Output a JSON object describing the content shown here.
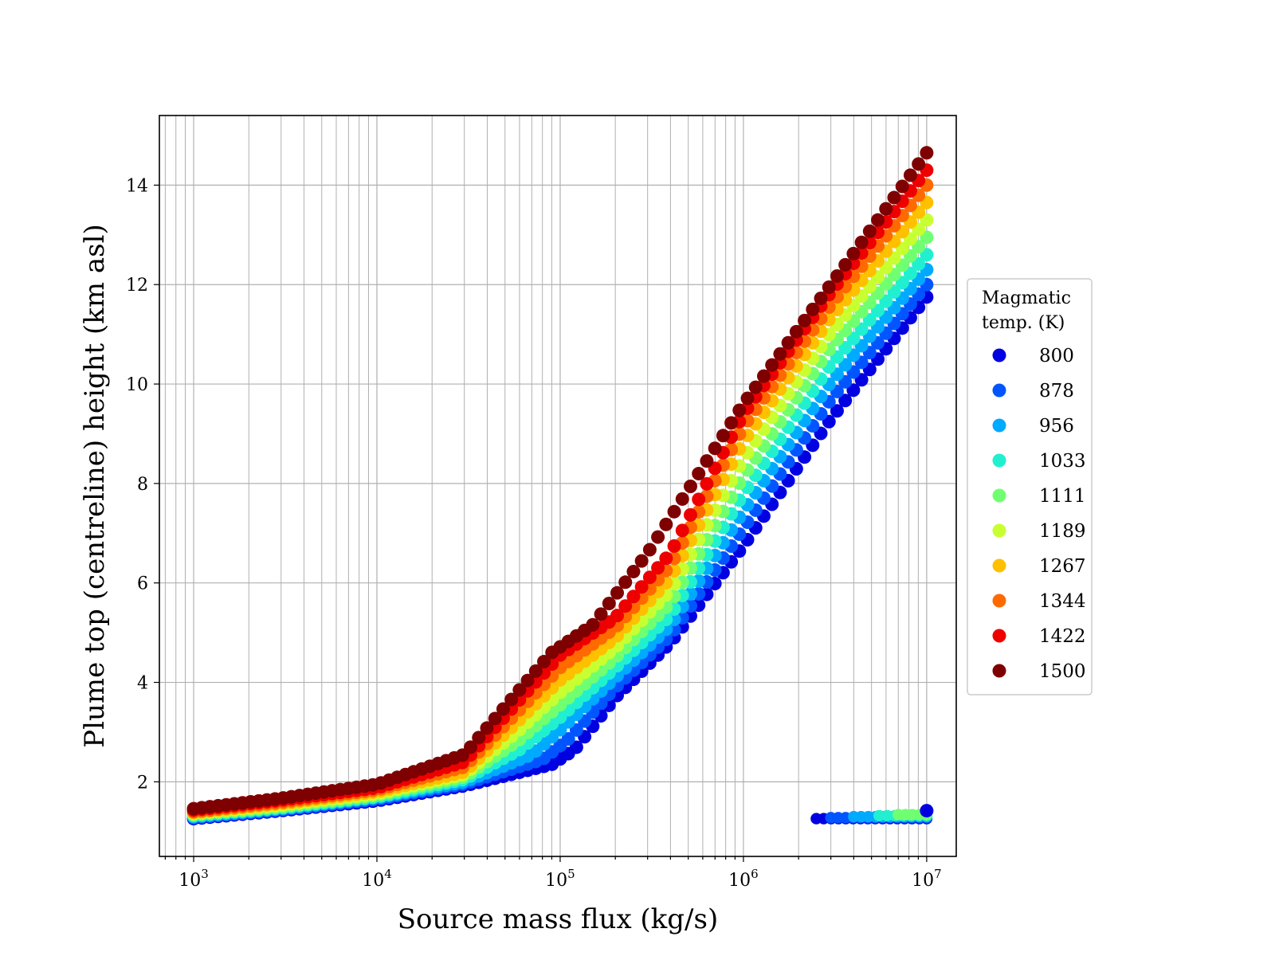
{
  "chart_data": {
    "type": "scatter",
    "xlabel": "Source mass flux (kg/s)",
    "ylabel": "Plume top (centreline) height (km asl)",
    "xscale": "log",
    "xlim": [
      650,
      14500000
    ],
    "ylim": [
      0.5,
      15.4
    ],
    "x_ticks": [
      1000,
      10000,
      100000,
      1000000,
      10000000
    ],
    "x_tick_labels": [
      {
        "base": "10",
        "exp": "3"
      },
      {
        "base": "10",
        "exp": "4"
      },
      {
        "base": "10",
        "exp": "5"
      },
      {
        "base": "10",
        "exp": "6"
      },
      {
        "base": "10",
        "exp": "7"
      }
    ],
    "y_ticks": [
      2,
      4,
      6,
      8,
      10,
      12,
      14
    ],
    "y_tick_labels": [
      "2",
      "4",
      "6",
      "8",
      "10",
      "12",
      "14"
    ],
    "grid": true,
    "grid_minor_x": true,
    "legend": {
      "title_lines": [
        "Magmatic",
        "temp. (K)"
      ],
      "placement": "outside right"
    },
    "series": [
      {
        "name": "800",
        "color": "#0000e0",
        "low_y": 1.26,
        "knot_x": [
          1000,
          3000,
          10000,
          30000,
          90000,
          120000,
          200000,
          400000,
          1000000,
          3000000,
          10000000
        ],
        "knot_y": [
          1.26,
          1.42,
          1.62,
          1.92,
          2.35,
          2.65,
          3.7,
          4.8,
          6.75,
          9.3,
          11.75
        ],
        "low_x_range": [
          2500000,
          10000000
        ]
      },
      {
        "name": "878",
        "color": "#0055ff",
        "low_y": 1.28,
        "knot_x": [
          1000,
          3000,
          10000,
          30000,
          80000,
          110000,
          200000,
          400000,
          1000000,
          3000000,
          10000000
        ],
        "knot_y": [
          1.28,
          1.44,
          1.65,
          1.96,
          2.45,
          2.85,
          3.9,
          4.95,
          7.1,
          9.7,
          12.0
        ],
        "low_x_range": [
          3000000,
          10000000
        ]
      },
      {
        "name": "956",
        "color": "#00aaff",
        "low_y": 1.3,
        "knot_x": [
          1000,
          3000,
          10000,
          30000,
          70000,
          100000,
          200000,
          400000,
          1000000,
          3000000,
          10000000
        ],
        "knot_y": [
          1.3,
          1.46,
          1.68,
          2.0,
          2.55,
          3.05,
          4.1,
          5.15,
          7.45,
          10.05,
          12.3
        ],
        "low_x_range": [
          4000000,
          10000000
        ]
      },
      {
        "name": "1033",
        "color": "#20f0d0",
        "low_y": 1.32,
        "knot_x": [
          1000,
          3000,
          10000,
          30000,
          60000,
          100000,
          200000,
          400000,
          1000000,
          3000000,
          10000000
        ],
        "knot_y": [
          1.32,
          1.48,
          1.7,
          2.05,
          2.65,
          3.3,
          4.3,
          5.35,
          7.8,
          10.4,
          12.6
        ],
        "low_x_range": [
          5500000,
          10000000
        ]
      },
      {
        "name": "1111",
        "color": "#70ff70",
        "low_y": 1.34,
        "knot_x": [
          1000,
          3000,
          10000,
          30000,
          60000,
          100000,
          200000,
          400000,
          1000000,
          3000000,
          10000000
        ],
        "knot_y": [
          1.34,
          1.5,
          1.73,
          2.1,
          2.85,
          3.55,
          4.5,
          5.6,
          8.15,
          10.75,
          12.95
        ],
        "low_x_range": [
          7000000,
          10000000
        ]
      },
      {
        "name": "1189",
        "color": "#c8ff30",
        "knot_x": [
          1000,
          3000,
          10000,
          30000,
          60000,
          100000,
          200000,
          400000,
          1000000,
          3000000,
          10000000
        ],
        "knot_y": [
          1.36,
          1.53,
          1.76,
          2.15,
          3.05,
          3.8,
          4.7,
          5.85,
          8.5,
          11.05,
          13.3
        ]
      },
      {
        "name": "1267",
        "color": "#ffc000",
        "knot_x": [
          1000,
          3000,
          10000,
          30000,
          60000,
          100000,
          200000,
          400000,
          1000000,
          3000000,
          10000000
        ],
        "knot_y": [
          1.38,
          1.56,
          1.8,
          2.2,
          3.25,
          4.05,
          4.9,
          6.1,
          8.85,
          11.35,
          13.65
        ]
      },
      {
        "name": "1344",
        "color": "#ff6a00",
        "knot_x": [
          1000,
          3000,
          10000,
          30000,
          60000,
          100000,
          200000,
          400000,
          1000000,
          3000000,
          10000000
        ],
        "knot_y": [
          1.4,
          1.59,
          1.84,
          2.3,
          3.45,
          4.3,
          5.1,
          6.35,
          9.15,
          11.6,
          14.0
        ]
      },
      {
        "name": "1422",
        "color": "#ee0000",
        "knot_x": [
          1000,
          3000,
          10000,
          30000,
          60000,
          100000,
          200000,
          400000,
          1000000,
          3000000,
          10000000
        ],
        "knot_y": [
          1.43,
          1.63,
          1.88,
          2.4,
          3.65,
          4.55,
          5.3,
          6.6,
          9.4,
          11.85,
          14.3
        ]
      },
      {
        "name": "1500",
        "color": "#7f0000",
        "knot_x": [
          1000,
          3000,
          10000,
          30000,
          60000,
          90000,
          150000,
          300000,
          1000000,
          3000000,
          10000000
        ],
        "knot_y": [
          1.46,
          1.67,
          1.95,
          2.55,
          3.85,
          4.6,
          5.15,
          6.6,
          9.6,
          12.0,
          14.65
        ]
      }
    ]
  }
}
